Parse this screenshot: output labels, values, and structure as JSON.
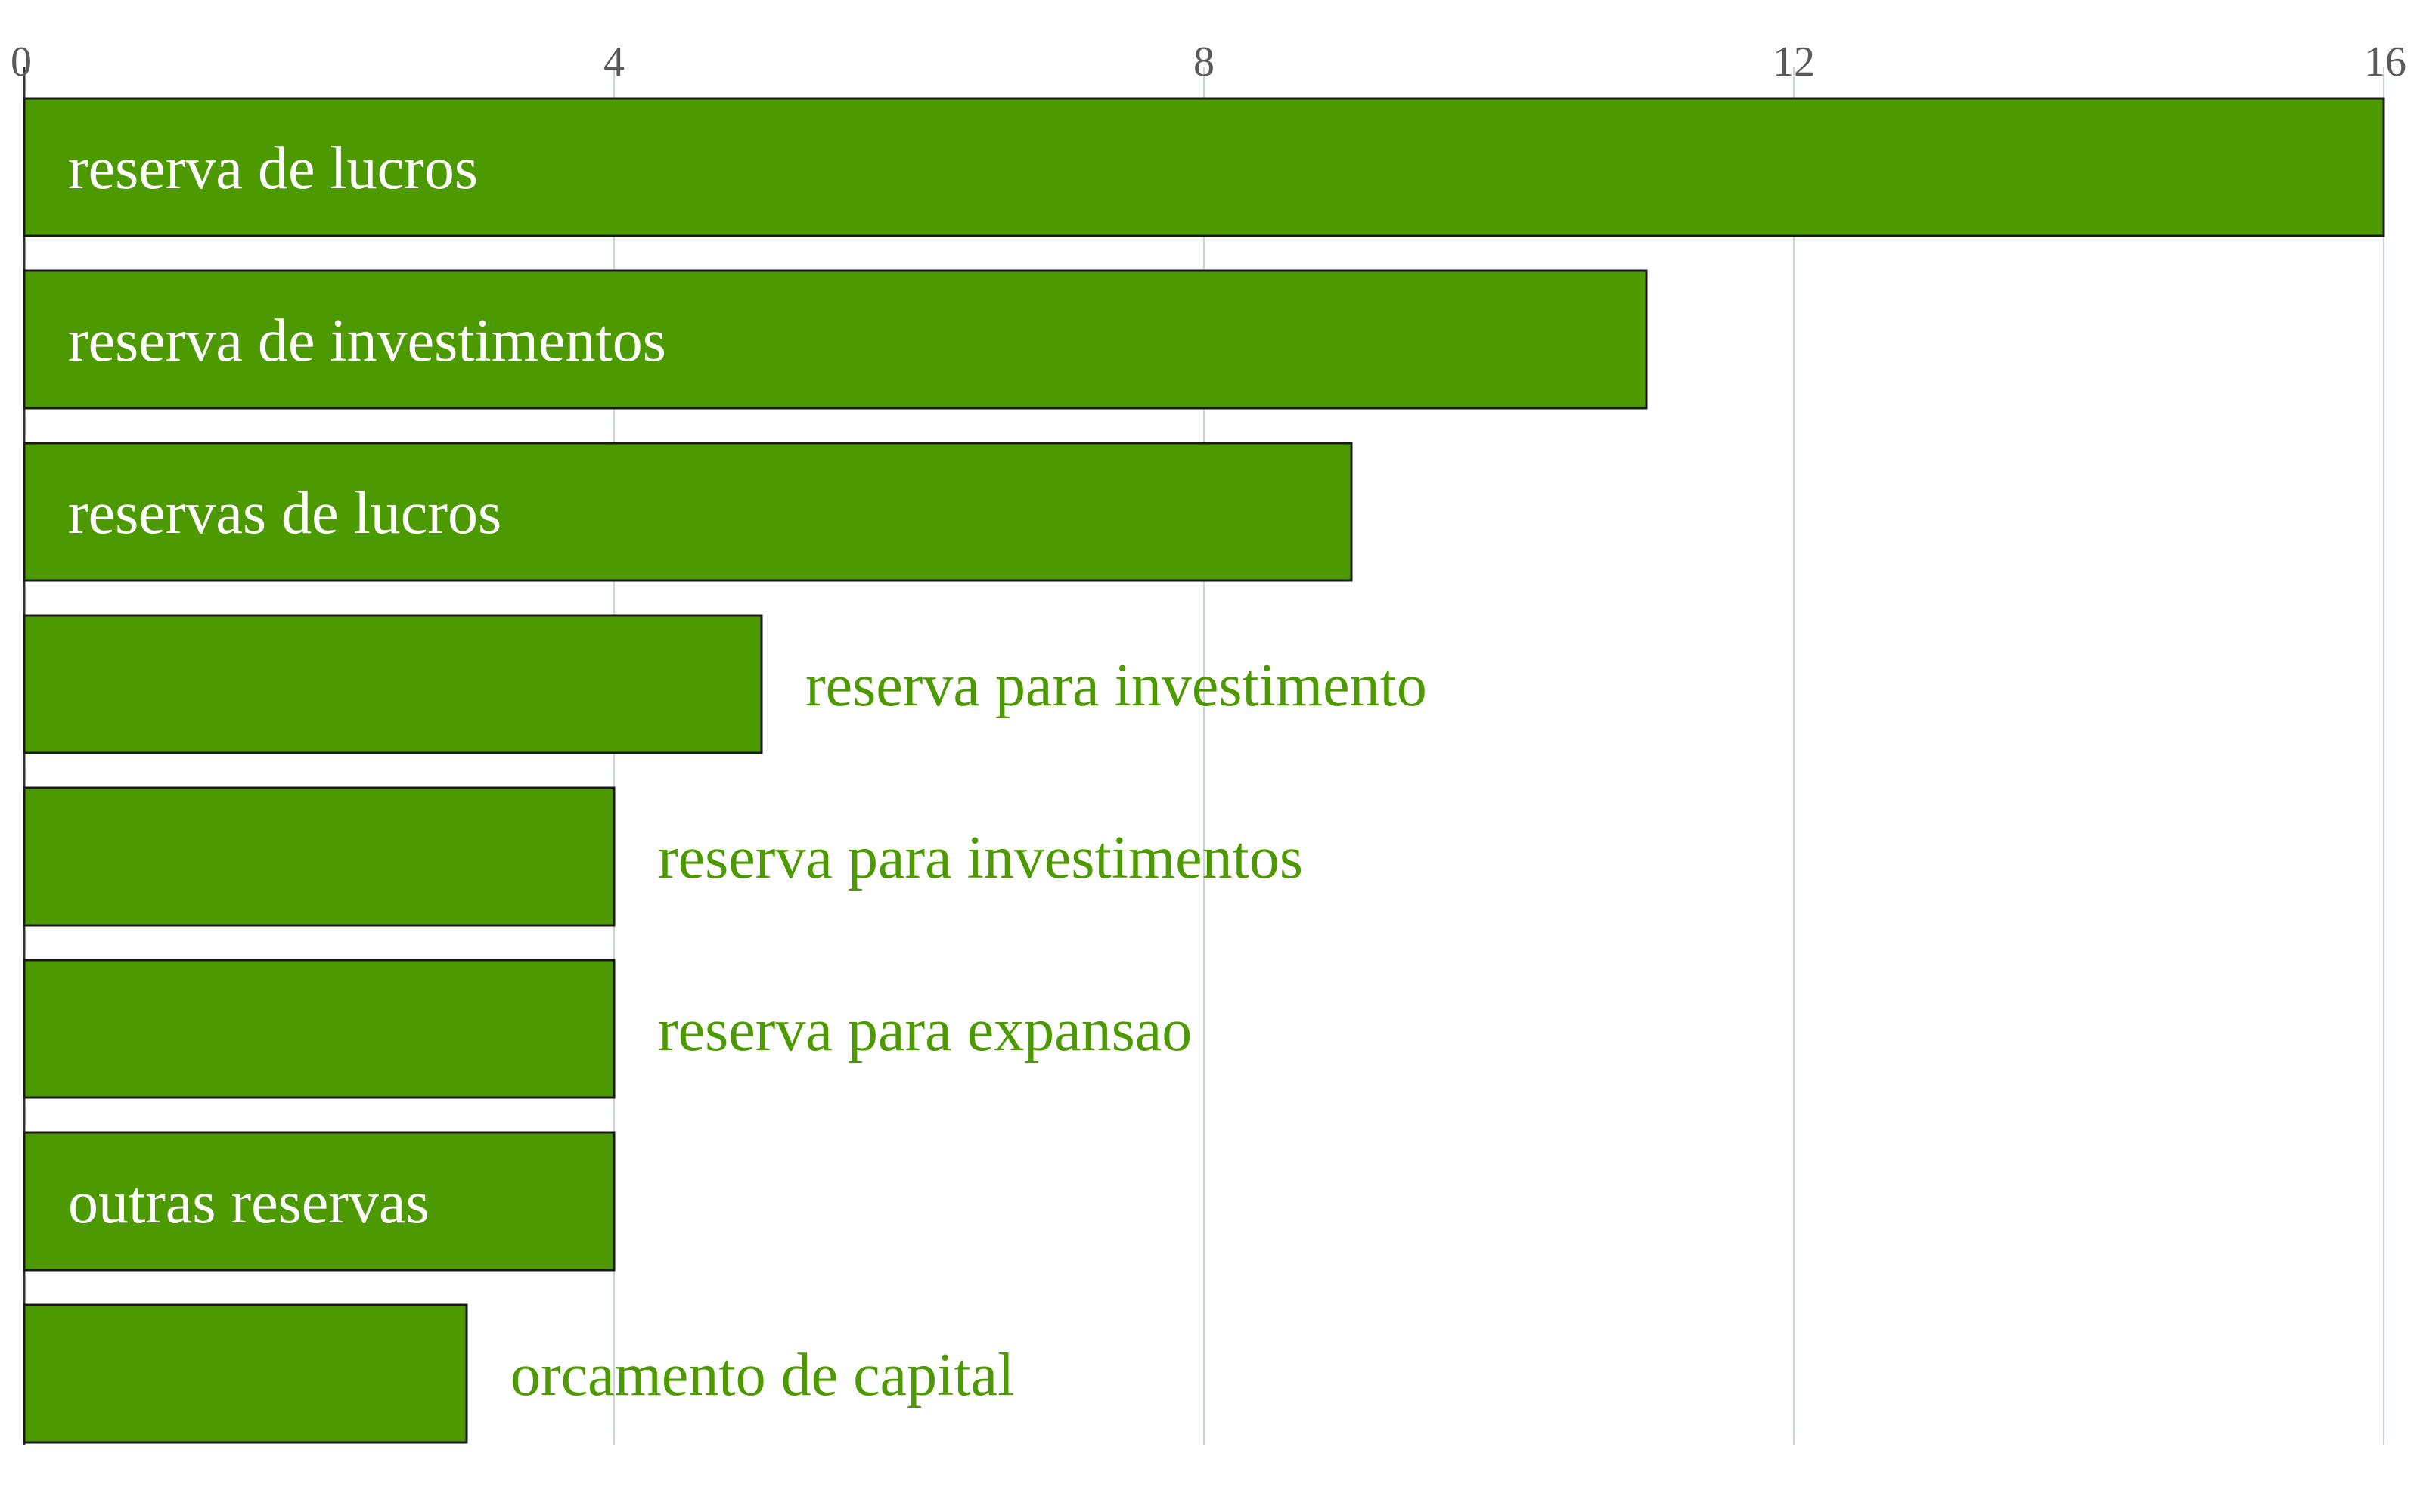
{
  "chart_data": {
    "type": "bar",
    "orientation": "horizontal",
    "categories": [
      "reserva de lucros",
      "reserva de investimentos",
      "reservas de lucros",
      "reserva para investimento",
      "reserva para investimentos",
      "reserva para expansao",
      "outras reservas",
      "orcamento de capital"
    ],
    "values": [
      16,
      11,
      9,
      5,
      4,
      4,
      4,
      3
    ],
    "xlim": [
      0,
      16
    ],
    "xticks": [
      "0",
      "4",
      "8",
      "12",
      "16"
    ],
    "axis_position": "top",
    "grid": true,
    "legend": "none",
    "colors": {
      "bar": "#4d9a00",
      "bar_border": "#1a1a1a",
      "inside_label": "#ffffff",
      "outside_label": "#4d9a00",
      "grid": "#c9d3dc",
      "tick_text": "#595959"
    }
  }
}
